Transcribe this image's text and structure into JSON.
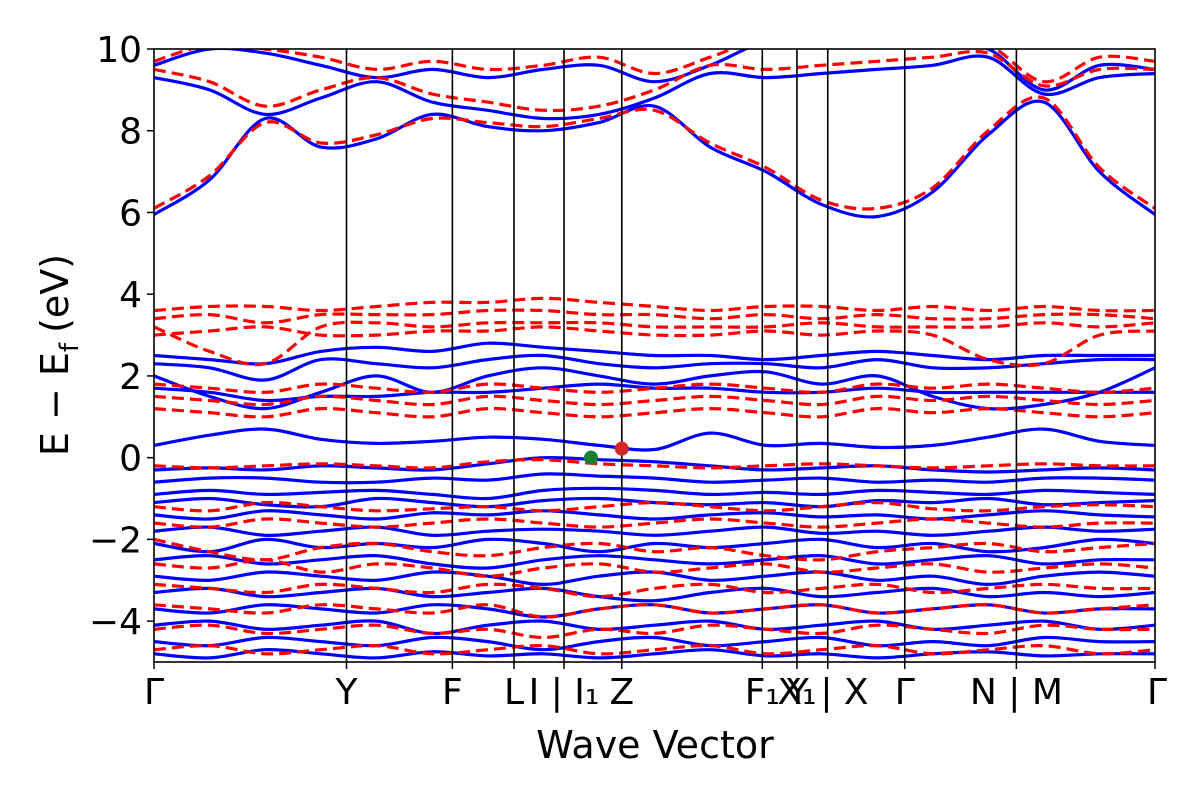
{
  "chart_data": {
    "type": "line",
    "title": "",
    "xlabel": "Wave Vector",
    "ylabel_main": "E − E",
    "ylabel_sub": "f",
    "ylabel_unit": "(eV)",
    "ylim": [
      -5,
      10
    ],
    "yticks": [
      -4,
      -2,
      0,
      2,
      4,
      6,
      8,
      10
    ],
    "ytick_labels": [
      "−4",
      "−2",
      "0",
      "2",
      "4",
      "6",
      "8",
      "10"
    ],
    "grid": false,
    "legend": "none",
    "colors": {
      "blue": "#0000ff",
      "red": "#ff0000",
      "green": "#1a7f2e",
      "redpt": "#d62728"
    },
    "kpath": [
      {
        "label": "Γ",
        "x": 0.0
      },
      {
        "label": "Y",
        "x": 1.0
      },
      {
        "label": "F",
        "x": 1.55
      },
      {
        "label": "L|I",
        "x": 1.87
      },
      {
        "label": "I₁",
        "x": 2.13
      },
      {
        "label": "Z",
        "x": 2.43
      },
      {
        "label": "F₁|Y",
        "x": 3.16
      },
      {
        "label": "Y₁|X₁",
        "x": 3.34
      },
      {
        "label": "X",
        "x": 3.5
      },
      {
        "label": "Γ",
        "x": 3.9
      },
      {
        "label": "N|M",
        "x": 4.48
      },
      {
        "label": "Γ",
        "x": 5.2
      }
    ],
    "xtick_labels": [
      "Γ",
      "Y",
      "F",
      "L",
      "I | I₁",
      "Z",
      "F₁",
      "X₁",
      "Y | X",
      "Γ",
      "N | M",
      "Γ"
    ],
    "series": [
      {
        "style": "solid",
        "color": "blue",
        "bands": [
          [
            5.95,
            6.8,
            8.3,
            7.6,
            7.8,
            8.4,
            8.1,
            8.0,
            8.2,
            8.6,
            7.6,
            7.0,
            6.2,
            5.9,
            6.5,
            7.9,
            8.7,
            7.0,
            5.95
          ],
          [
            9.3,
            9.0,
            8.4,
            8.8,
            9.2,
            8.7,
            8.5,
            8.3,
            8.4,
            8.8,
            9.4,
            9.3,
            9.4,
            9.5,
            9.6,
            9.8,
            8.9,
            9.3,
            9.4
          ],
          [
            9.6,
            10.0,
            9.9,
            9.6,
            9.3,
            9.5,
            9.3,
            9.5,
            9.6,
            9.2,
            9.6,
            10.2,
            10.4,
            10.3,
            10.1,
            10.0,
            9.0,
            9.6,
            9.5
          ],
          [
            2.5,
            2.4,
            2.3,
            2.6,
            2.7,
            2.6,
            2.8,
            2.7,
            2.6,
            2.5,
            2.5,
            2.4,
            2.5,
            2.6,
            2.5,
            2.4,
            2.5,
            2.5,
            2.5
          ],
          [
            2.3,
            2.2,
            1.9,
            2.4,
            2.3,
            2.2,
            2.4,
            2.5,
            2.3,
            2.2,
            2.3,
            2.3,
            2.2,
            2.4,
            2.2,
            2.2,
            2.3,
            2.4,
            2.4
          ],
          [
            2.0,
            1.5,
            1.2,
            1.6,
            2.0,
            1.6,
            2.0,
            2.2,
            2.0,
            1.8,
            2.0,
            2.1,
            1.8,
            2.0,
            1.5,
            1.2,
            1.3,
            1.6,
            2.2
          ],
          [
            1.7,
            1.6,
            1.4,
            1.5,
            1.5,
            1.6,
            1.6,
            1.7,
            1.8,
            1.7,
            1.7,
            1.6,
            1.6,
            1.7,
            1.6,
            1.6,
            1.6,
            1.6,
            1.6
          ],
          [
            0.3,
            0.55,
            0.7,
            0.45,
            0.35,
            0.4,
            0.5,
            0.45,
            0.3,
            0.2,
            0.6,
            0.3,
            0.35,
            0.25,
            0.3,
            0.5,
            0.7,
            0.4,
            0.3
          ],
          [
            -0.3,
            -0.25,
            -0.3,
            -0.2,
            -0.25,
            -0.3,
            -0.15,
            0.0,
            -0.05,
            -0.1,
            -0.2,
            -0.3,
            -0.25,
            -0.2,
            -0.3,
            -0.35,
            -0.3,
            -0.25,
            -0.3
          ],
          [
            -0.6,
            -0.5,
            -0.5,
            -0.6,
            -0.6,
            -0.5,
            -0.55,
            -0.4,
            -0.45,
            -0.5,
            -0.6,
            -0.55,
            -0.5,
            -0.6,
            -0.55,
            -0.6,
            -0.5,
            -0.5,
            -0.55
          ],
          [
            -0.9,
            -0.8,
            -0.9,
            -0.85,
            -0.8,
            -0.9,
            -1.0,
            -0.8,
            -0.75,
            -0.8,
            -0.9,
            -0.85,
            -0.9,
            -0.8,
            -0.85,
            -0.9,
            -0.8,
            -0.85,
            -0.9
          ],
          [
            -1.1,
            -1.0,
            -1.15,
            -1.2,
            -1.0,
            -1.1,
            -1.2,
            -1.05,
            -1.0,
            -1.1,
            -1.15,
            -1.1,
            -1.2,
            -1.05,
            -1.1,
            -1.0,
            -1.15,
            -1.1,
            -1.05
          ],
          [
            -1.4,
            -1.5,
            -1.3,
            -1.4,
            -1.5,
            -1.35,
            -1.4,
            -1.3,
            -1.4,
            -1.5,
            -1.4,
            -1.35,
            -1.45,
            -1.4,
            -1.5,
            -1.4,
            -1.3,
            -1.4,
            -1.45
          ],
          [
            -1.8,
            -1.7,
            -1.9,
            -1.8,
            -1.7,
            -1.9,
            -1.8,
            -1.75,
            -1.8,
            -1.9,
            -1.8,
            -1.7,
            -1.85,
            -1.8,
            -1.9,
            -1.8,
            -1.7,
            -1.8,
            -1.75
          ],
          [
            -2.1,
            -2.3,
            -2.0,
            -2.2,
            -2.1,
            -2.2,
            -2.0,
            -2.1,
            -2.3,
            -2.1,
            -2.2,
            -2.1,
            -2.0,
            -2.2,
            -2.1,
            -2.3,
            -2.2,
            -2.0,
            -2.1
          ],
          [
            -2.5,
            -2.4,
            -2.6,
            -2.5,
            -2.4,
            -2.6,
            -2.7,
            -2.5,
            -2.4,
            -2.5,
            -2.6,
            -2.5,
            -2.4,
            -2.6,
            -2.5,
            -2.4,
            -2.6,
            -2.5,
            -2.5
          ],
          [
            -2.9,
            -3.0,
            -2.8,
            -2.9,
            -3.0,
            -2.8,
            -2.9,
            -3.1,
            -2.9,
            -2.8,
            -3.0,
            -2.9,
            -2.8,
            -3.0,
            -2.9,
            -3.1,
            -2.9,
            -2.8,
            -2.9
          ],
          [
            -3.3,
            -3.2,
            -3.4,
            -3.3,
            -3.2,
            -3.4,
            -3.3,
            -3.2,
            -3.4,
            -3.5,
            -3.3,
            -3.2,
            -3.4,
            -3.3,
            -3.2,
            -3.4,
            -3.3,
            -3.4,
            -3.3
          ],
          [
            -3.7,
            -3.8,
            -3.6,
            -3.7,
            -3.8,
            -3.6,
            -3.7,
            -3.9,
            -3.7,
            -3.6,
            -3.8,
            -3.7,
            -3.6,
            -3.8,
            -3.7,
            -3.6,
            -3.8,
            -3.7,
            -3.7
          ],
          [
            -4.1,
            -4.0,
            -4.2,
            -4.1,
            -4.0,
            -4.3,
            -4.1,
            -4.0,
            -4.2,
            -4.1,
            -4.0,
            -4.2,
            -4.1,
            -4.0,
            -4.2,
            -4.1,
            -4.0,
            -4.2,
            -4.1
          ],
          [
            -4.5,
            -4.6,
            -4.4,
            -4.5,
            -4.6,
            -4.4,
            -4.5,
            -4.7,
            -4.5,
            -4.4,
            -4.6,
            -4.5,
            -4.4,
            -4.6,
            -4.5,
            -4.6,
            -4.4,
            -4.5,
            -4.5
          ],
          [
            -4.8,
            -4.9,
            -4.7,
            -4.8,
            -4.9,
            -4.75,
            -4.85,
            -4.8,
            -4.9,
            -4.8,
            -4.7,
            -4.85,
            -4.8,
            -4.9,
            -4.8,
            -4.75,
            -4.85,
            -4.8,
            -4.8
          ]
        ]
      },
      {
        "style": "dashed",
        "color": "red",
        "bands": [
          [
            6.1,
            6.9,
            8.2,
            7.7,
            7.9,
            8.3,
            8.2,
            8.1,
            8.3,
            8.5,
            7.7,
            7.1,
            6.3,
            6.1,
            6.6,
            8.0,
            8.8,
            7.1,
            6.1
          ],
          [
            9.5,
            9.2,
            8.6,
            9.0,
            9.3,
            8.9,
            8.7,
            8.5,
            8.6,
            9.0,
            9.6,
            9.5,
            9.6,
            9.7,
            9.8,
            9.9,
            9.1,
            9.5,
            9.5
          ],
          [
            9.7,
            10.1,
            10.0,
            9.8,
            9.5,
            9.7,
            9.5,
            9.6,
            9.8,
            9.4,
            9.8,
            10.3,
            10.5,
            10.4,
            10.2,
            10.1,
            9.2,
            9.8,
            9.7
          ],
          [
            3.6,
            3.7,
            3.7,
            3.6,
            3.7,
            3.8,
            3.8,
            3.9,
            3.8,
            3.7,
            3.6,
            3.7,
            3.7,
            3.6,
            3.7,
            3.6,
            3.7,
            3.6,
            3.6
          ],
          [
            3.4,
            3.5,
            3.3,
            3.5,
            3.5,
            3.5,
            3.6,
            3.6,
            3.5,
            3.5,
            3.4,
            3.5,
            3.4,
            3.5,
            3.4,
            3.4,
            3.5,
            3.5,
            3.4
          ],
          [
            3.2,
            2.6,
            2.3,
            3.2,
            3.3,
            3.2,
            3.3,
            3.3,
            3.3,
            3.2,
            3.2,
            3.2,
            3.3,
            3.2,
            3.2,
            3.2,
            3.3,
            3.2,
            3.3
          ],
          [
            3.0,
            3.1,
            3.2,
            3.0,
            3.0,
            3.1,
            3.1,
            3.2,
            3.1,
            3.0,
            3.0,
            3.1,
            3.0,
            3.1,
            3.0,
            2.4,
            2.3,
            3.0,
            3.1
          ],
          [
            1.8,
            1.7,
            1.6,
            1.8,
            1.7,
            1.6,
            1.8,
            1.7,
            1.6,
            1.7,
            1.8,
            1.7,
            1.6,
            1.8,
            1.7,
            1.8,
            1.7,
            1.6,
            1.7
          ],
          [
            1.5,
            1.4,
            1.3,
            1.5,
            1.4,
            1.3,
            1.5,
            1.4,
            1.3,
            1.4,
            1.5,
            1.4,
            1.3,
            1.5,
            1.4,
            1.5,
            1.4,
            1.3,
            1.4
          ],
          [
            1.2,
            1.1,
            1.0,
            1.2,
            1.1,
            1.0,
            1.2,
            1.1,
            1.0,
            1.1,
            1.2,
            1.1,
            1.0,
            1.2,
            1.1,
            1.2,
            1.1,
            1.0,
            1.1
          ],
          [
            -0.2,
            -0.25,
            -0.2,
            -0.15,
            -0.2,
            -0.25,
            -0.1,
            -0.05,
            -0.15,
            -0.2,
            -0.25,
            -0.2,
            -0.15,
            -0.2,
            -0.25,
            -0.2,
            -0.15,
            -0.2,
            -0.2
          ],
          [
            -1.2,
            -1.3,
            -1.1,
            -1.2,
            -1.3,
            -1.25,
            -1.2,
            -1.3,
            -1.2,
            -1.1,
            -1.2,
            -1.3,
            -1.2,
            -1.1,
            -1.25,
            -1.3,
            -1.2,
            -1.15,
            -1.2
          ],
          [
            -1.6,
            -1.7,
            -1.5,
            -1.6,
            -1.7,
            -1.6,
            -1.5,
            -1.6,
            -1.7,
            -1.6,
            -1.5,
            -1.6,
            -1.7,
            -1.6,
            -1.5,
            -1.6,
            -1.7,
            -1.6,
            -1.6
          ],
          [
            -2.0,
            -2.3,
            -2.5,
            -2.2,
            -2.1,
            -2.3,
            -2.4,
            -2.2,
            -2.1,
            -2.3,
            -2.2,
            -2.4,
            -2.5,
            -2.3,
            -2.2,
            -2.1,
            -2.3,
            -2.2,
            -2.1
          ],
          [
            -2.6,
            -2.7,
            -2.5,
            -2.8,
            -2.6,
            -2.7,
            -2.9,
            -2.7,
            -2.6,
            -2.8,
            -2.7,
            -2.6,
            -2.8,
            -2.7,
            -2.6,
            -2.8,
            -2.7,
            -2.6,
            -2.7
          ],
          [
            -3.1,
            -3.2,
            -3.3,
            -3.1,
            -3.2,
            -3.3,
            -3.1,
            -3.2,
            -3.4,
            -3.2,
            -3.1,
            -3.3,
            -3.2,
            -3.1,
            -3.3,
            -3.2,
            -3.1,
            -3.2,
            -3.2
          ],
          [
            -3.6,
            -3.7,
            -3.8,
            -3.6,
            -3.7,
            -3.8,
            -3.6,
            -3.9,
            -3.7,
            -3.6,
            -3.8,
            -3.7,
            -3.6,
            -3.8,
            -3.7,
            -3.6,
            -3.8,
            -3.7,
            -3.6
          ],
          [
            -4.2,
            -4.1,
            -4.3,
            -4.2,
            -4.1,
            -4.3,
            -4.2,
            -4.4,
            -4.2,
            -4.3,
            -4.1,
            -4.2,
            -4.3,
            -4.1,
            -4.2,
            -4.3,
            -4.1,
            -4.2,
            -4.2
          ],
          [
            -4.7,
            -4.6,
            -4.8,
            -4.7,
            -4.6,
            -4.8,
            -4.7,
            -4.6,
            -4.8,
            -4.7,
            -4.6,
            -4.8,
            -4.7,
            -4.6,
            -4.8,
            -4.7,
            -4.6,
            -4.8,
            -4.7
          ]
        ]
      }
    ],
    "points": [
      {
        "x": 2.27,
        "y": 0.0,
        "color": "green"
      },
      {
        "x": 2.43,
        "y": 0.22,
        "color": "redpt"
      }
    ]
  }
}
